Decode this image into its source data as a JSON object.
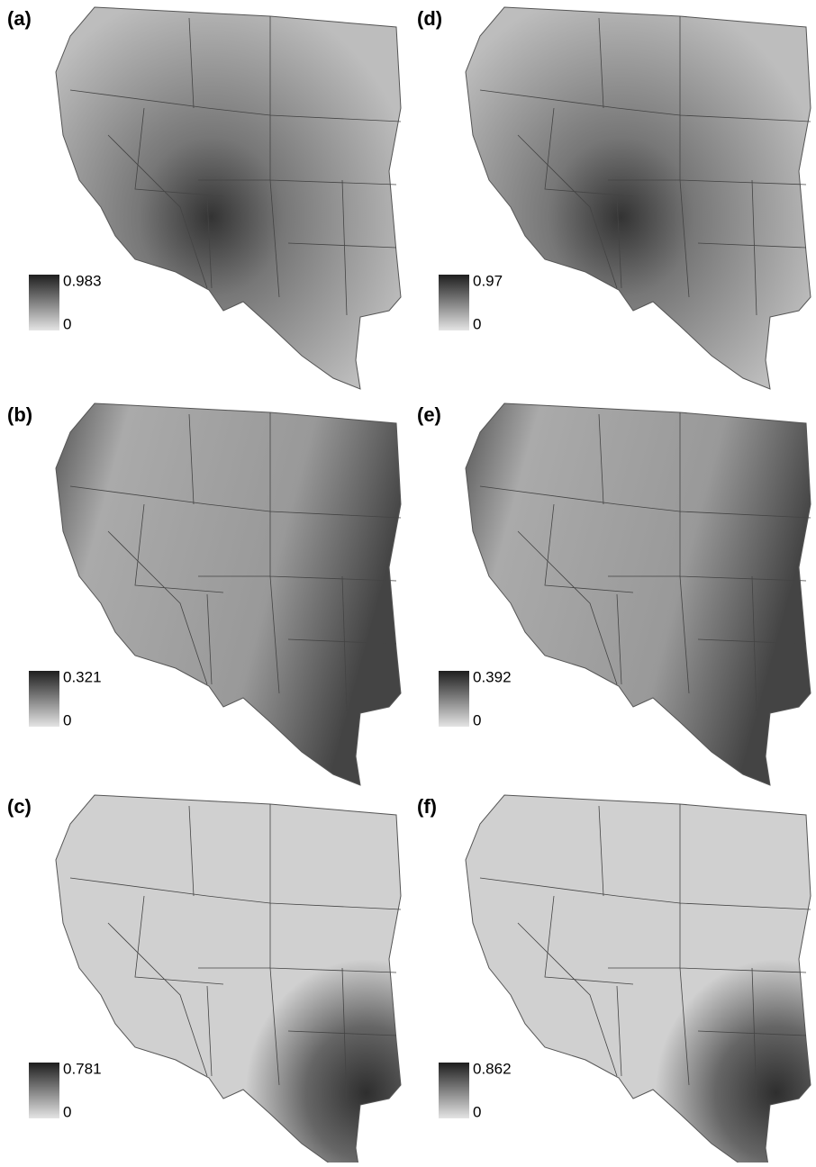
{
  "panels": [
    {
      "label": "(a)",
      "legend_max": "0.983",
      "legend_min": "0"
    },
    {
      "label": "(b)",
      "legend_max": "0.321",
      "legend_min": "0"
    },
    {
      "label": "(c)",
      "legend_max": "0.781",
      "legend_min": "0"
    },
    {
      "label": "(d)",
      "legend_max": "0.97",
      "legend_min": "0"
    },
    {
      "label": "(e)",
      "legend_max": "0.392",
      "legend_min": "0"
    },
    {
      "label": "(f)",
      "legend_max": "0.862",
      "legend_min": "0"
    }
  ]
}
